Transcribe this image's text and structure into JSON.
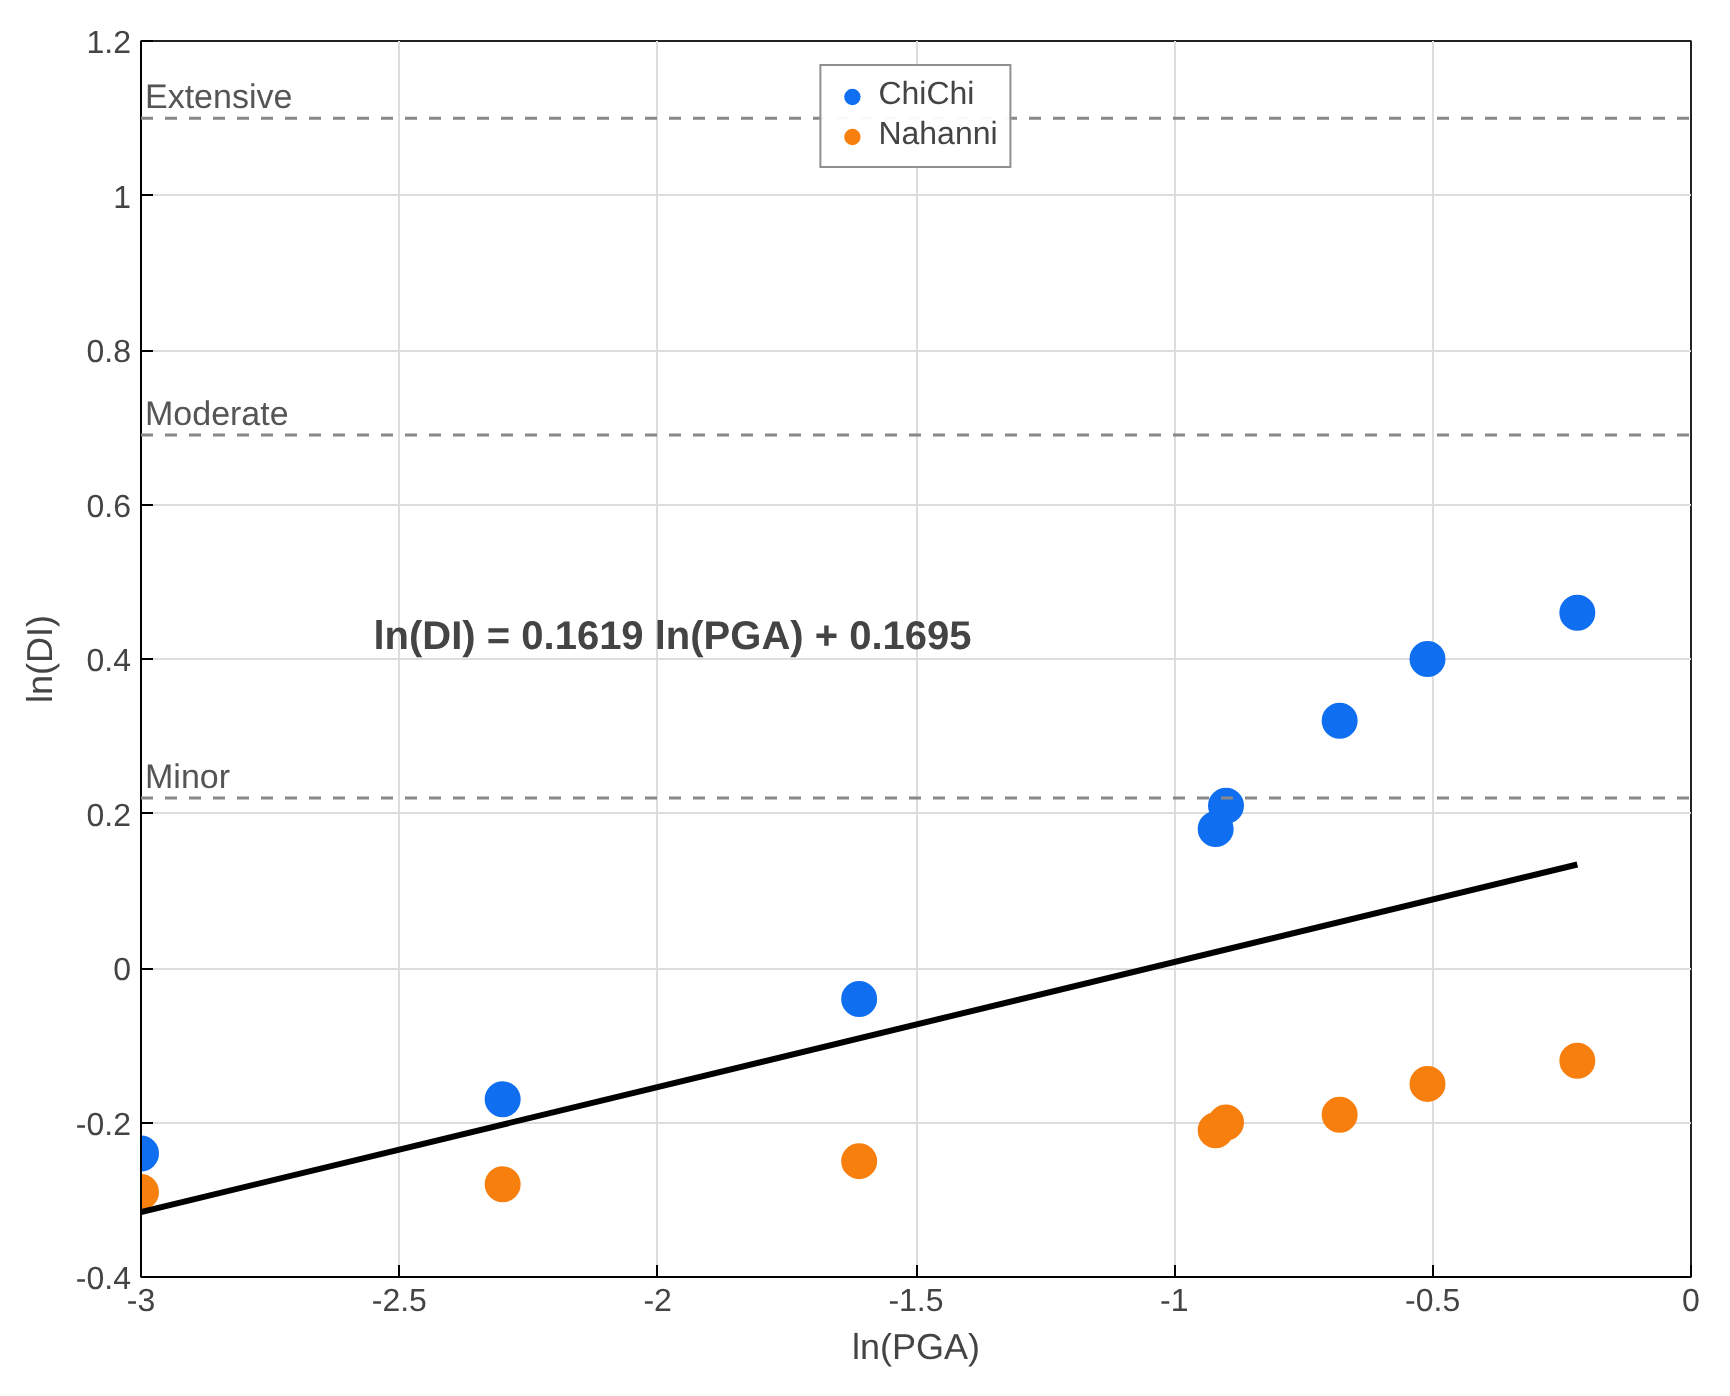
{
  "chart_data": {
    "type": "scatter",
    "xlabel": "ln(PGA)",
    "ylabel": "ln(DI)",
    "x": [
      -3.0,
      -2.3,
      -1.61,
      -0.92,
      -0.9,
      -0.68,
      -0.51,
      -0.22
    ],
    "series": [
      {
        "name": "ChiChi",
        "color": "#0f6ff0",
        "values": [
          -0.24,
          -0.17,
          -0.04,
          0.18,
          0.21,
          0.32,
          0.4,
          0.46
        ]
      },
      {
        "name": "Nahanni",
        "color": "#f77f0e",
        "values": [
          -0.29,
          -0.28,
          -0.25,
          -0.21,
          -0.2,
          -0.19,
          -0.15,
          -0.12
        ]
      },
      {
        "type": "line",
        "marker": "none",
        "color": "#000000",
        "x": [
          -3.0,
          -0.22
        ],
        "values": [
          -0.316,
          0.134
        ]
      }
    ],
    "annotations": [
      "ln(DI) = 0.1619 ln(PGA) + 0.1695"
    ],
    "ref_lines": [
      {
        "axis": "y",
        "value": 1.1,
        "label": "Extensive",
        "color": "#888888",
        "line_style": "dashed"
      },
      {
        "axis": "y",
        "value": 0.69,
        "label": "Moderate",
        "color": "#888888",
        "line_style": "dashed"
      },
      {
        "axis": "y",
        "value": 0.22,
        "label": "Minor",
        "color": "#888888",
        "line_style": "dashed"
      }
    ],
    "xlim": [
      -3,
      0
    ],
    "xticks": [
      -3,
      -2.5,
      -2,
      -1.5,
      -1,
      -0.5,
      0
    ],
    "ylim": [
      -0.4,
      1.2
    ],
    "yticks": [
      -0.4,
      -0.2,
      0,
      0.2,
      0.4,
      0.6,
      0.8,
      1,
      1.2
    ],
    "grid": true,
    "legend": "top",
    "marker": "circle"
  }
}
